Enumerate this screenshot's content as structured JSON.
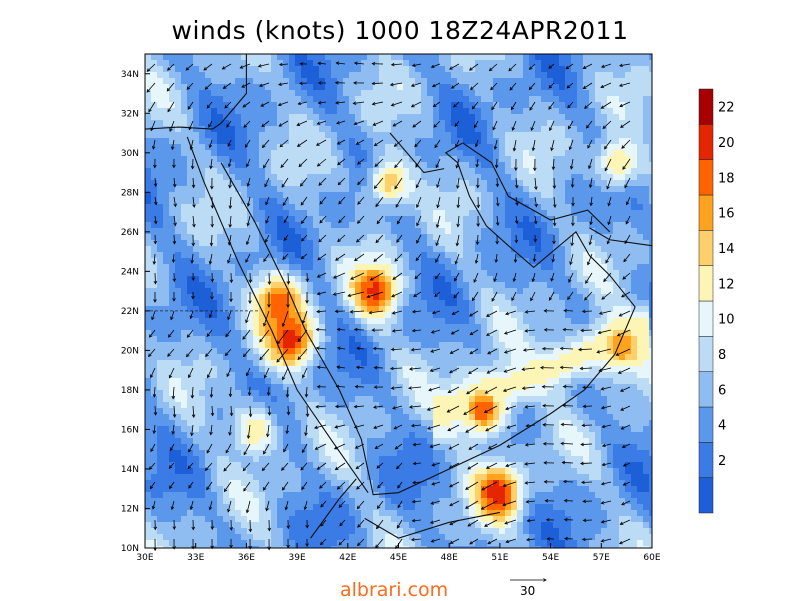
{
  "title": "winds (knots) 1000 18Z24APR2011",
  "credit": "albrari.com",
  "reference_vector": {
    "label": "30",
    "knots": 30
  },
  "map": {
    "lon_range": [
      30,
      60
    ],
    "lat_range": [
      10,
      35
    ],
    "x_ticks": [
      "30E",
      "33E",
      "36E",
      "39E",
      "42E",
      "45E",
      "48E",
      "51E",
      "54E",
      "57E",
      "60E"
    ],
    "y_ticks": [
      "10N",
      "12N",
      "14N",
      "16N",
      "18N",
      "20N",
      "22N",
      "24N",
      "26N",
      "28N",
      "30N",
      "32N",
      "34N"
    ]
  },
  "colorbar": {
    "levels": [
      2,
      4,
      6,
      8,
      10,
      12,
      14,
      16,
      18,
      20,
      22
    ],
    "colors": [
      "#1c5fd6",
      "#3a7be6",
      "#5b98ec",
      "#8fbdf2",
      "#bcdcf6",
      "#e6f6fb",
      "#fdf5b6",
      "#fed06b",
      "#ffa21d",
      "#ff6400",
      "#e52500",
      "#a60000"
    ]
  },
  "hotspots": [
    {
      "lon": 38.6,
      "lat": 20.6,
      "speed": 22
    },
    {
      "lon": 37.9,
      "lat": 22.4,
      "speed": 20
    },
    {
      "lon": 43.6,
      "lat": 23.0,
      "speed": 21
    },
    {
      "lon": 50.9,
      "lat": 12.8,
      "speed": 22
    },
    {
      "lon": 50.0,
      "lat": 17.0,
      "speed": 20
    },
    {
      "lon": 58.2,
      "lat": 20.2,
      "speed": 18
    },
    {
      "lon": 44.5,
      "lat": 28.5,
      "speed": 15
    },
    {
      "lon": 58.0,
      "lat": 29.5,
      "speed": 14
    },
    {
      "lon": 36.5,
      "lat": 16.0,
      "speed": 14
    }
  ]
}
